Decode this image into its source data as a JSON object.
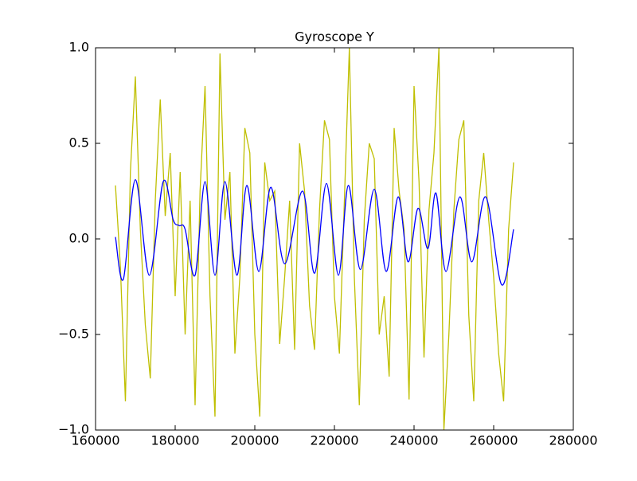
{
  "chart_data": {
    "type": "line",
    "title": "Gyroscope Y",
    "xlim": [
      160000,
      280000
    ],
    "xticks": [
      160000,
      180000,
      200000,
      220000,
      240000,
      260000,
      280000
    ],
    "ylim": [
      -1.0,
      1.0
    ],
    "yticks": [
      {
        "value": -1.0,
        "label": "−1.0"
      },
      {
        "value": -0.5,
        "label": "−0.5"
      },
      {
        "value": 0.0,
        "label": "0.0"
      },
      {
        "value": 0.5,
        "label": "0.5"
      },
      {
        "value": 1.0,
        "label": "1.0"
      }
    ],
    "series": [
      {
        "color": "#bfbf00",
        "smooth": false,
        "x": [
          165000,
          166250,
          167500,
          168750,
          170000,
          171250,
          172500,
          173750,
          175000,
          176250,
          177500,
          178750,
          180000,
          181250,
          182500,
          183750,
          185000,
          186250,
          187500,
          188750,
          190000,
          191250,
          192500,
          193750,
          195000,
          196250,
          197500,
          198750,
          200000,
          201250,
          202500,
          203750,
          205000,
          206250,
          207500,
          208750,
          210000,
          211250,
          212500,
          213750,
          215000,
          216250,
          217500,
          218750,
          220000,
          221250,
          222500,
          223750,
          225000,
          226250,
          227500,
          228750,
          230000,
          231250,
          232500,
          233750,
          235000,
          236250,
          237500,
          238750,
          240000,
          241250,
          242500,
          243750,
          245000,
          246250,
          247500,
          248750,
          250000,
          251250,
          252500,
          253750,
          255000,
          256250,
          257500,
          258750,
          260000,
          261250,
          262500,
          263750,
          265000
        ],
        "values": [
          0.28,
          -0.15,
          -0.85,
          0.35,
          0.85,
          0.05,
          -0.45,
          -0.73,
          0.2,
          0.73,
          0.12,
          0.45,
          -0.3,
          0.35,
          -0.5,
          0.2,
          -0.87,
          0.25,
          0.8,
          -0.3,
          -0.93,
          0.97,
          0.1,
          0.35,
          -0.6,
          -0.2,
          0.58,
          0.45,
          -0.5,
          -0.93,
          0.4,
          0.2,
          0.25,
          -0.55,
          -0.2,
          0.2,
          -0.58,
          0.5,
          0.25,
          -0.35,
          -0.58,
          0.15,
          0.62,
          0.52,
          -0.3,
          -0.6,
          0.2,
          1.0,
          -0.2,
          -0.87,
          0.1,
          0.5,
          0.42,
          -0.5,
          -0.3,
          -0.72,
          0.58,
          0.25,
          0.05,
          -0.84,
          0.8,
          0.3,
          -0.62,
          0.15,
          0.45,
          1.0,
          -1.0,
          -0.5,
          0.15,
          0.52,
          0.62,
          -0.4,
          -0.85,
          0.2,
          0.45,
          0.1,
          -0.2,
          -0.6,
          -0.85,
          0.05,
          0.4
        ]
      },
      {
        "color": "#0000ff",
        "smooth": true,
        "x": [
          165000,
          167000,
          170000,
          173500,
          177000,
          179500,
          181000,
          182500,
          185000,
          187500,
          190000,
          192500,
          195500,
          198000,
          201000,
          204000,
          207500,
          212000,
          215000,
          218000,
          221000,
          223500,
          226500,
          230000,
          233000,
          236000,
          238500,
          241000,
          243500,
          245500,
          248000,
          251500,
          254500,
          258000,
          262000,
          265000
        ],
        "values": [
          0.01,
          -0.21,
          0.31,
          -0.19,
          0.3,
          0.1,
          0.07,
          0.05,
          -0.19,
          0.3,
          -0.19,
          0.3,
          -0.19,
          0.28,
          -0.17,
          0.27,
          -0.13,
          0.25,
          -0.18,
          0.29,
          -0.19,
          0.28,
          -0.16,
          0.26,
          -0.17,
          0.22,
          -0.12,
          0.16,
          -0.05,
          0.24,
          -0.17,
          0.22,
          -0.12,
          0.22,
          -0.24,
          0.05
        ]
      }
    ]
  }
}
